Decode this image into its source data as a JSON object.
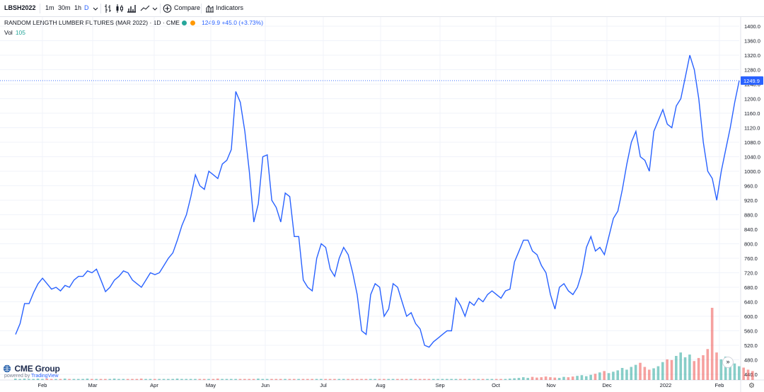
{
  "toolbar": {
    "symbol": "LBSH2022",
    "intervals": [
      "1m",
      "30m",
      "1h",
      "D"
    ],
    "active_interval": "D",
    "compare_label": "Compare",
    "indicators_label": "Indicators",
    "icons": [
      "chevron-down-icon",
      "bar-style-icon",
      "candle-style-icon",
      "hollow-candle-icon",
      "line-style-icon",
      "plus-circle-icon",
      "indicators-icon"
    ]
  },
  "legend": {
    "title": "RANDOM LENGTH LUMBER FUTURES (MAR 2022) · 1D · CME",
    "last_line": "1249.9  +45.0 (+3.73%)",
    "vol_label": "Vol",
    "vol_value": "105",
    "market_dot_color": "#26a69a",
    "delay_dot_color": "#ff9800"
  },
  "branding": {
    "brand": "CME Group",
    "powered_prefix": "powered by",
    "powered_name": "TradingView"
  },
  "colors": {
    "line": "#2962ff",
    "vol_up": "#26a69a",
    "vol_down": "#ef5350",
    "grid": "#f0f3fa",
    "price_tag": "#2962ff"
  },
  "chart_data": {
    "type": "line",
    "y_ticks": [
      "1400.0",
      "1360.0",
      "1320.0",
      "1280.0",
      "1240.0",
      "1200.0",
      "1160.0",
      "1120.0",
      "1080.0",
      "1040.0",
      "1000.0",
      "960.0",
      "920.0",
      "880.0",
      "840.0",
      "800.0",
      "760.0",
      "720.0",
      "680.0",
      "640.0",
      "600.0",
      "560.0",
      "520.0",
      "480.0",
      "440.0"
    ],
    "ylim": [
      440,
      1400
    ],
    "x_labels": [
      "Feb",
      "Mar",
      "Apr",
      "May",
      "Jun",
      "Jul",
      "Aug",
      "Sep",
      "Oct",
      "Nov",
      "Dec",
      "2022",
      "Feb"
    ],
    "last_price": 1249.9,
    "last_price_label": "1249.9",
    "grid": true,
    "series": [
      {
        "values": [
          550,
          580,
          635,
          635,
          665,
          690,
          705,
          690,
          675,
          680,
          670,
          685,
          680,
          700,
          710,
          710,
          725,
          720,
          730,
          700,
          668,
          680,
          700,
          710,
          725,
          720,
          700,
          690,
          680,
          700,
          720,
          715,
          720,
          740,
          760,
          775,
          810,
          850,
          880,
          930,
          990,
          960,
          950,
          1000,
          990,
          980,
          1020,
          1030,
          1060,
          1220,
          1190,
          1110,
          1000,
          860,
          910,
          1040,
          1045,
          920,
          900,
          860,
          940,
          930,
          820,
          820,
          700,
          680,
          670,
          760,
          800,
          790,
          730,
          710,
          760,
          790,
          770,
          720,
          660,
          560,
          550,
          660,
          690,
          680,
          600,
          620,
          690,
          680,
          640,
          600,
          610,
          580,
          565,
          520,
          515,
          530,
          540,
          550,
          560,
          560,
          650,
          630,
          600,
          640,
          630,
          650,
          640,
          660,
          670,
          660,
          650,
          670,
          675,
          750,
          780,
          810,
          810,
          780,
          770,
          740,
          720,
          660,
          620,
          680,
          690,
          670,
          660,
          680,
          720,
          790,
          820,
          780,
          790,
          770,
          820,
          870,
          890,
          950,
          1020,
          1080,
          1110,
          1040,
          1030,
          1000,
          1110,
          1140,
          1170,
          1130,
          1120,
          1180,
          1200,
          1260,
          1320,
          1280,
          1200,
          1080,
          1000,
          980,
          920,
          1000,
          1060,
          1120,
          1190,
          1250
        ]
      }
    ],
    "volume": {
      "values": [
        4,
        3,
        4,
        3,
        3,
        4,
        3,
        4,
        3,
        3,
        3,
        4,
        3,
        3,
        3,
        3,
        4,
        3,
        3,
        3,
        3,
        3,
        4,
        3,
        3,
        3,
        3,
        3,
        4,
        3,
        3,
        3,
        3,
        3,
        3,
        3,
        4,
        3,
        3,
        3,
        3,
        3,
        3,
        3,
        3,
        4,
        3,
        3,
        3,
        3,
        3,
        3,
        3,
        3,
        4,
        3,
        3,
        3,
        3,
        3,
        3,
        3,
        3,
        3,
        3,
        3,
        3,
        3,
        3,
        3,
        3,
        3,
        3,
        3,
        3,
        3,
        3,
        3,
        3,
        3,
        3,
        3,
        3,
        3,
        3,
        3,
        3,
        3,
        3,
        3,
        3,
        3,
        3,
        3,
        3,
        3,
        3,
        3,
        3,
        3,
        3,
        3,
        3,
        3,
        3,
        3,
        3,
        3,
        3,
        3,
        4,
        5,
        6,
        8,
        6,
        9,
        7,
        8,
        10,
        8,
        7,
        6,
        9,
        8,
        10,
        12,
        14,
        11,
        15,
        18,
        22,
        26,
        20,
        24,
        28,
        35,
        30,
        38,
        44,
        50,
        38,
        30,
        34,
        40,
        52,
        60,
        58,
        70,
        80,
        66,
        74,
        55,
        64,
        72,
        90,
        210,
        80,
        60,
        68,
        54,
        48,
        40,
        36,
        30,
        26
      ]
    }
  }
}
